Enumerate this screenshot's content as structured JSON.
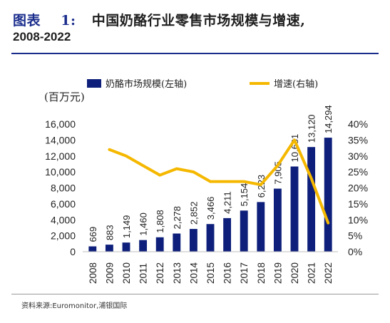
{
  "header": {
    "title_prefix": "图表",
    "title_number": "1:",
    "title_text": "中国奶酪行业零售市场规模与增速,",
    "title_line2": "2008-2022"
  },
  "chart_data": {
    "type": "bar",
    "categories": [
      "2008",
      "2009",
      "2010",
      "2011",
      "2012",
      "2013",
      "2014",
      "2015",
      "2016",
      "2017",
      "2018",
      "2019",
      "2020",
      "2021",
      "2022"
    ],
    "series": [
      {
        "name": "奶酪市场规模(左轴)",
        "type": "bar",
        "axis": "left",
        "color": "#0d1f7a",
        "values": [
          669,
          883,
          1149,
          1460,
          1808,
          2278,
          2852,
          3466,
          4211,
          5154,
          6223,
          7905,
          10681,
          13120,
          14294
        ],
        "labels": [
          "669",
          "883",
          "1,149",
          "1,460",
          "1,808",
          "2,278",
          "2,852",
          "3,466",
          "4,211",
          "5,154",
          "6,223",
          "7,905",
          "10,681",
          "13,120",
          "14,294"
        ]
      },
      {
        "name": "增速(右轴)",
        "type": "line",
        "axis": "right",
        "color": "#f5b800",
        "values": [
          null,
          32,
          30,
          27,
          24,
          26,
          25,
          22,
          22,
          22,
          21,
          27,
          35,
          23,
          9
        ]
      }
    ],
    "left_axis": {
      "unit_label": "(百万元)",
      "ylim": [
        0,
        16000
      ],
      "ticks": [
        "0",
        "2,000",
        "4,000",
        "6,000",
        "8,000",
        "10,000",
        "12,000",
        "14,000",
        "16,000"
      ]
    },
    "right_axis": {
      "ylim": [
        0,
        40
      ],
      "ticks": [
        "0%",
        "5%",
        "10%",
        "15%",
        "20%",
        "25%",
        "30%",
        "35%",
        "40%"
      ]
    },
    "legend_position": "top",
    "grid": false
  },
  "footer": {
    "source": "资料来源:Euromonitor,浦银国际"
  }
}
